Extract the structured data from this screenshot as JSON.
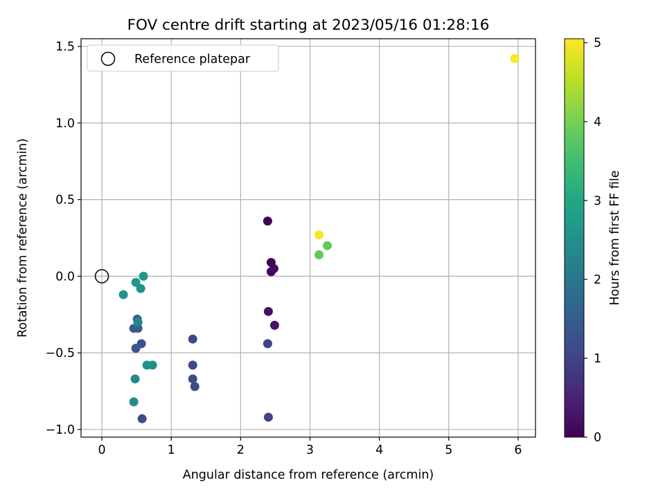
{
  "chart_data": {
    "type": "scatter",
    "title": "FOV centre drift starting at 2023/05/16 01:28:16",
    "xlabel": "Angular distance from reference (arcmin)",
    "ylabel": "Rotation from reference (arcmin)",
    "xlim": [
      -0.3,
      6.25
    ],
    "ylim": [
      -1.05,
      1.55
    ],
    "x_ticks": [
      0,
      1,
      2,
      3,
      4,
      5,
      6
    ],
    "x_tick_labels": [
      "0",
      "1",
      "2",
      "3",
      "4",
      "5",
      "6"
    ],
    "y_ticks": [
      -1.0,
      -0.5,
      0.0,
      0.5,
      1.0,
      1.5
    ],
    "y_tick_labels": [
      "−1.0",
      "−0.5",
      "0.0",
      "0.5",
      "1.0",
      "1.5"
    ],
    "grid": true,
    "legend": {
      "placement": "top-left",
      "entries": [
        "Reference platepar"
      ]
    },
    "reference_point": {
      "x": 0,
      "y": 0
    },
    "colorbar": {
      "label": "Hours from first FF file",
      "range": [
        0,
        5.05
      ],
      "ticks": [
        0,
        1,
        2,
        3,
        4,
        5
      ],
      "tick_labels": [
        "0",
        "1",
        "2",
        "3",
        "4",
        "5"
      ],
      "colormap": "viridis"
    },
    "points": [
      {
        "x": 2.39,
        "y": 0.36,
        "hours": 0.0
      },
      {
        "x": 2.44,
        "y": 0.09,
        "hours": 0.05
      },
      {
        "x": 2.44,
        "y": 0.03,
        "hours": 0.1
      },
      {
        "x": 2.48,
        "y": 0.05,
        "hours": 0.15
      },
      {
        "x": 2.4,
        "y": -0.23,
        "hours": 0.2
      },
      {
        "x": 2.49,
        "y": -0.32,
        "hours": 0.25
      },
      {
        "x": 2.39,
        "y": -0.44,
        "hours": 1.0
      },
      {
        "x": 2.4,
        "y": -0.92,
        "hours": 1.0
      },
      {
        "x": 1.31,
        "y": -0.41,
        "hours": 1.1
      },
      {
        "x": 1.31,
        "y": -0.58,
        "hours": 1.1
      },
      {
        "x": 1.31,
        "y": -0.67,
        "hours": 1.15
      },
      {
        "x": 1.34,
        "y": -0.72,
        "hours": 1.15
      },
      {
        "x": 0.58,
        "y": -0.93,
        "hours": 1.2
      },
      {
        "x": 0.57,
        "y": -0.44,
        "hours": 1.25
      },
      {
        "x": 0.49,
        "y": -0.47,
        "hours": 1.3
      },
      {
        "x": 0.46,
        "y": -0.34,
        "hours": 1.4
      },
      {
        "x": 0.52,
        "y": -0.34,
        "hours": 1.5
      },
      {
        "x": 0.51,
        "y": -0.28,
        "hours": 1.6
      },
      {
        "x": 0.52,
        "y": -0.3,
        "hours": 2.3
      },
      {
        "x": 0.46,
        "y": -0.82,
        "hours": 2.4
      },
      {
        "x": 0.48,
        "y": -0.67,
        "hours": 2.4
      },
      {
        "x": 0.65,
        "y": -0.58,
        "hours": 2.5
      },
      {
        "x": 0.73,
        "y": -0.58,
        "hours": 2.5
      },
      {
        "x": 0.31,
        "y": -0.12,
        "hours": 2.6
      },
      {
        "x": 0.49,
        "y": -0.04,
        "hours": 2.6
      },
      {
        "x": 0.56,
        "y": -0.08,
        "hours": 2.6
      },
      {
        "x": 0.6,
        "y": 0.0,
        "hours": 2.7
      },
      {
        "x": 3.13,
        "y": 0.14,
        "hours": 3.8
      },
      {
        "x": 3.25,
        "y": 0.2,
        "hours": 3.8
      },
      {
        "x": 3.13,
        "y": 0.27,
        "hours": 5.0
      },
      {
        "x": 5.95,
        "y": 1.42,
        "hours": 5.05
      }
    ]
  }
}
